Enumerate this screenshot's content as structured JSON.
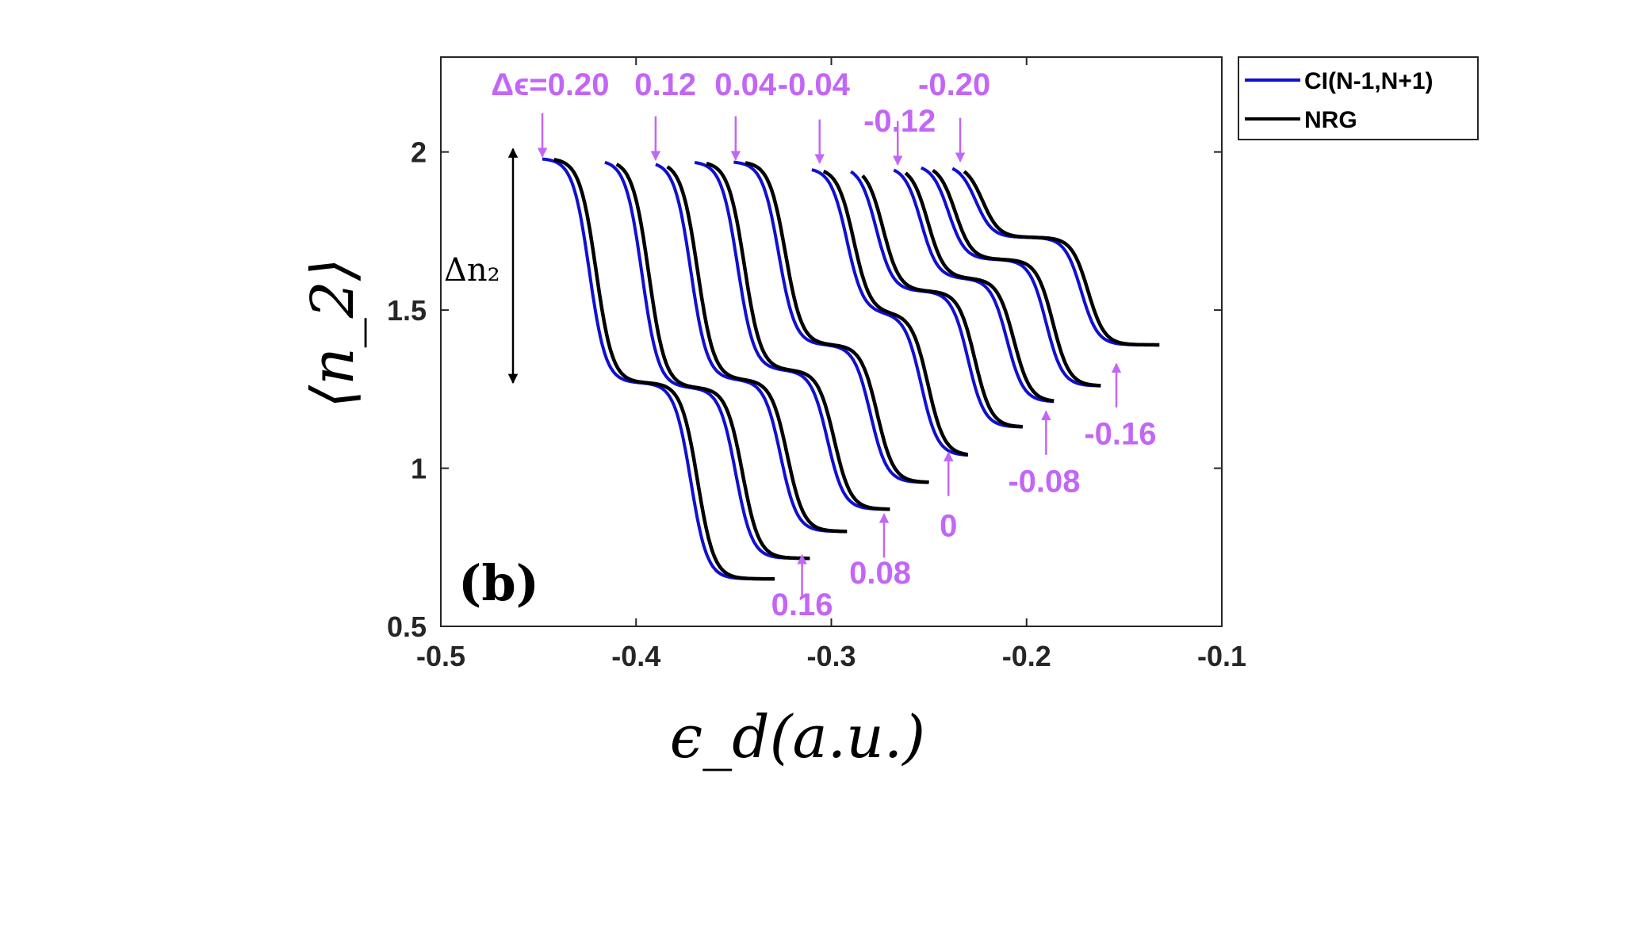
{
  "chart_data": {
    "type": "line",
    "panel_label": "(b)",
    "xlabel": "ϵ_d(a.u.)",
    "ylabel": "⟨n_2⟩",
    "xlim": [
      -0.5,
      -0.1
    ],
    "ylim": [
      0.5,
      2.3
    ],
    "x_ticks": [
      -0.5,
      -0.4,
      -0.3,
      -0.2,
      -0.1
    ],
    "y_ticks": [
      0.5,
      1,
      1.5,
      2
    ],
    "x_tick_labels": [
      "-0.5",
      "-0.4",
      "-0.3",
      "-0.2",
      "-0.1"
    ],
    "y_tick_labels": [
      "0.5",
      "1",
      "1.5",
      "2"
    ],
    "grid": false,
    "legend_position": "outside-top-right",
    "legend": [
      {
        "name": "CI(N-1,N+1)",
        "color": "#1010d0"
      },
      {
        "name": "NRG",
        "color": "#000000"
      }
    ],
    "delta_n_label": "Δn₂",
    "delta_n_range": [
      1.27,
      2.01
    ],
    "curves": [
      {
        "de": "0.20",
        "x0": -0.448,
        "x1": -0.329,
        "y0": 1.98,
        "y1": 0.65,
        "c1": -0.424,
        "c2": -0.372,
        "mid": 1.27
      },
      {
        "de": "0.16",
        "x0": -0.416,
        "x1": -0.311,
        "y0": 1.975,
        "y1": 0.715,
        "c1": -0.397,
        "c2": -0.349,
        "mid": 1.255
      },
      {
        "de": "0.12",
        "x0": -0.39,
        "x1": -0.292,
        "y0": 1.97,
        "y1": 0.8,
        "c1": -0.372,
        "c2": -0.326,
        "mid": 1.28
      },
      {
        "de": "0.08",
        "x0": -0.37,
        "x1": -0.27,
        "y0": 1.97,
        "y1": 0.87,
        "c1": -0.348,
        "c2": -0.302,
        "mid": 1.31
      },
      {
        "de": "0.04",
        "x0": -0.35,
        "x1": -0.25,
        "y0": 1.97,
        "y1": 0.955,
        "c1": -0.327,
        "c2": -0.28,
        "mid": 1.39
      },
      {
        "de": "-0.04",
        "x0": -0.31,
        "x1": -0.23,
        "y0": 1.95,
        "y1": 1.04,
        "c1": -0.292,
        "c2": -0.254,
        "mid": 1.49
      },
      {
        "de": "-0.08",
        "x0": -0.29,
        "x1": -0.202,
        "y0": 1.955,
        "y1": 1.13,
        "c1": -0.277,
        "c2": -0.23,
        "mid": 1.56
      },
      {
        "de": "-0.12",
        "x0": -0.268,
        "x1": -0.186,
        "y0": 1.955,
        "y1": 1.21,
        "c1": -0.254,
        "c2": -0.21,
        "mid": 1.6
      },
      {
        "de": "-0.16",
        "x0": -0.254,
        "x1": -0.162,
        "y0": 1.96,
        "y1": 1.26,
        "c1": -0.24,
        "c2": -0.19,
        "mid": 1.66
      },
      {
        "de": "-0.20",
        "x0": -0.238,
        "x1": -0.132,
        "y0": 1.96,
        "y1": 1.39,
        "c1": -0.226,
        "c2": -0.172,
        "mid": 1.73
      }
    ],
    "annotations_top": [
      {
        "text": "Δϵ=0.20",
        "x": -0.448,
        "y": 1.975,
        "tx": -0.444,
        "ty": 2.215
      },
      {
        "text": "0.12",
        "x": -0.39,
        "y": 1.965,
        "tx": -0.385,
        "ty": 2.215
      },
      {
        "text": "0.04",
        "x": -0.349,
        "y": 1.965,
        "tx": -0.344,
        "ty": 2.215
      },
      {
        "text": "-0.04",
        "x": -0.306,
        "y": 1.955,
        "tx": -0.309,
        "ty": 2.215
      },
      {
        "text": "-0.12",
        "x": -0.266,
        "y": 1.95,
        "tx": -0.265,
        "ty": 2.1
      },
      {
        "text": "-0.20",
        "x": -0.234,
        "y": 1.96,
        "tx": -0.237,
        "ty": 2.215
      }
    ],
    "annotations_bottom": [
      {
        "text": "0.16",
        "x": -0.315,
        "y": 0.735,
        "tx": -0.315,
        "ty": 0.57
      },
      {
        "text": "0.08",
        "x": -0.273,
        "y": 0.865,
        "tx": -0.275,
        "ty": 0.67
      },
      {
        "text": "0",
        "x": -0.24,
        "y": 1.06,
        "tx": -0.24,
        "ty": 0.82
      },
      {
        "text": "-0.08",
        "x": -0.19,
        "y": 1.19,
        "tx": -0.191,
        "ty": 0.96
      },
      {
        "text": "-0.16",
        "x": -0.154,
        "y": 1.34,
        "tx": -0.152,
        "ty": 1.11
      }
    ],
    "annotation_color": "#c366f5"
  }
}
